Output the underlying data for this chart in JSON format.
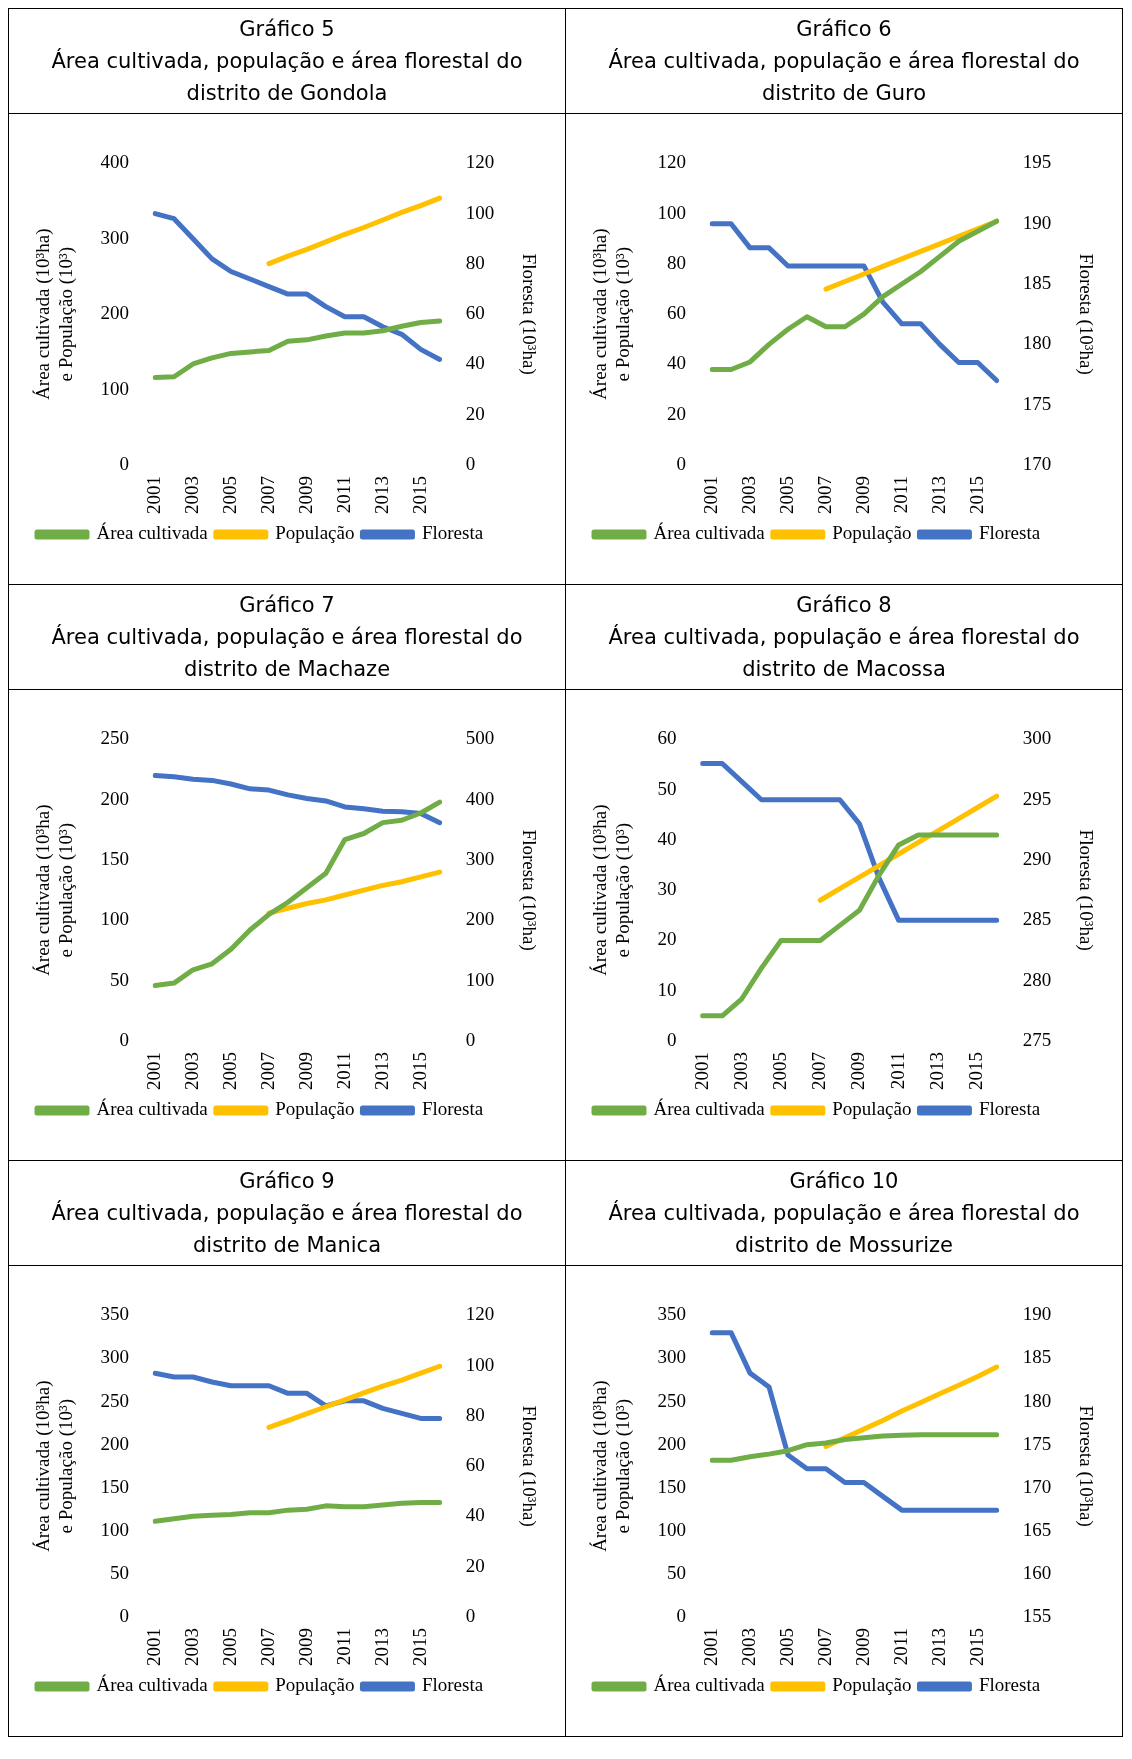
{
  "chart_data": [
    {
      "type": "line",
      "title": "Gráfico 5",
      "subtitle": "Área cultivada, população e área florestal do distrito de Gondola",
      "ylabel": "Área cultivada (10³ha) e População (10³)",
      "y2label": "Floresta (10³ha)",
      "categories": [
        "2001",
        null,
        "2003",
        null,
        "2005",
        null,
        "2007",
        null,
        "2009",
        null,
        "2011",
        null,
        "2013",
        null,
        "2015",
        null
      ],
      "ylim": [
        0,
        400
      ],
      "yticks": [
        0,
        100,
        200,
        300,
        400
      ],
      "y2lim": [
        0,
        120
      ],
      "y2ticks": [
        0,
        20,
        40,
        60,
        80,
        100,
        120
      ],
      "legend": "bottom",
      "marker": "none",
      "series": [
        {
          "name": "Área cultivada",
          "color": "#70ad47",
          "values": [
            116,
            117,
            134,
            142,
            148,
            150,
            152,
            164,
            166,
            171,
            175,
            175,
            178,
            184,
            189,
            191
          ]
        },
        {
          "name": "População",
          "color": "#ffc000",
          "values": [
            null,
            null,
            null,
            null,
            null,
            null,
            267,
            277,
            286,
            296,
            306,
            315,
            325,
            335,
            344,
            354
          ]
        },
        {
          "name": "Floresta",
          "color": "#4472c4",
          "axis": "y2",
          "values": [
            100,
            98,
            90,
            82,
            77,
            74,
            71,
            68,
            68,
            63,
            59,
            59,
            55,
            52,
            46,
            42
          ]
        }
      ]
    },
    {
      "type": "line",
      "title": "Gráfico 6",
      "subtitle": "Área cultivada, população e área florestal do distrito de Guro",
      "ylabel": "Área cultivada (10³ha) e População (10³)",
      "y2label": "Floresta (10³ha)",
      "categories": [
        "2001",
        null,
        "2003",
        null,
        "2005",
        null,
        "2007",
        null,
        "2009",
        null,
        "2011",
        null,
        "2013",
        null,
        "2015",
        null
      ],
      "ylim": [
        0,
        120
      ],
      "yticks": [
        0,
        20,
        40,
        60,
        80,
        100,
        120
      ],
      "y2lim": [
        170,
        195
      ],
      "y2ticks": [
        170,
        175,
        180,
        185,
        190,
        195
      ],
      "legend": "bottom",
      "marker": "none",
      "series": [
        {
          "name": "Área cultivada",
          "color": "#70ad47",
          "values": [
            38,
            38,
            41,
            48,
            54,
            59,
            55,
            55,
            60,
            67,
            72,
            77,
            83,
            89,
            93,
            97
          ]
        },
        {
          "name": "População",
          "color": "#ffc000",
          "values": [
            null,
            null,
            null,
            null,
            null,
            null,
            70,
            73,
            76,
            79,
            82,
            85,
            88,
            91,
            94,
            97
          ]
        },
        {
          "name": "Floresta",
          "color": "#4472c4",
          "axis": "y2",
          "values": [
            190,
            190,
            188,
            188,
            186.5,
            186.5,
            186.5,
            186.5,
            186.5,
            183.5,
            181.7,
            181.7,
            180,
            178.5,
            178.5,
            177
          ]
        }
      ]
    },
    {
      "type": "line",
      "title": "Gráfico 7",
      "subtitle": "Área cultivada, população e área florestal do distrito de Machaze",
      "ylabel": "Área cultivada (10³ha) e População (10³)",
      "y2label": "Floresta (10³ha)",
      "categories": [
        "2001",
        null,
        "2003",
        null,
        "2005",
        null,
        "2007",
        null,
        "2009",
        null,
        "2011",
        null,
        "2013",
        null,
        "2015",
        null
      ],
      "ylim": [
        0,
        250
      ],
      "yticks": [
        0,
        50,
        100,
        150,
        200,
        250
      ],
      "y2lim": [
        0,
        500
      ],
      "y2ticks": [
        0,
        100,
        200,
        300,
        400,
        500
      ],
      "legend": "bottom",
      "marker": "none",
      "series": [
        {
          "name": "Área cultivada",
          "color": "#70ad47",
          "values": [
            46,
            48,
            59,
            64,
            76,
            92,
            105,
            115,
            127,
            139,
            167,
            172,
            181,
            183,
            189,
            198
          ]
        },
        {
          "name": "População",
          "color": "#ffc000",
          "values": [
            null,
            null,
            null,
            null,
            null,
            null,
            106,
            110,
            114,
            117,
            121,
            125,
            129,
            132,
            136,
            140
          ]
        },
        {
          "name": "Floresta",
          "color": "#4472c4",
          "axis": "y2",
          "values": [
            440,
            438,
            434,
            432,
            426,
            418,
            416,
            408,
            402,
            398,
            388,
            385,
            381,
            380,
            377,
            362
          ]
        }
      ]
    },
    {
      "type": "line",
      "title": "Gráfico 8",
      "subtitle": "Área cultivada, população e área florestal do distrito de Macossa",
      "ylabel": "Área cultivada (10³ha) e População (10³)",
      "y2label": "Floresta (10³ha)",
      "categories": [
        "2001",
        null,
        "2003",
        null,
        "2005",
        null,
        "2007",
        null,
        "2009",
        null,
        "2011",
        null,
        "2013",
        null,
        "2015",
        null
      ],
      "ylim": [
        0,
        60
      ],
      "yticks": [
        0,
        10,
        20,
        30,
        40,
        50,
        60
      ],
      "y2lim": [
        275,
        300
      ],
      "y2ticks": [
        275,
        280,
        285,
        290,
        295,
        300
      ],
      "legend": "bottom",
      "marker": "none",
      "series": [
        {
          "name": "Área cultivada",
          "color": "#70ad47",
          "values": [
            5,
            5,
            8.4,
            14.5,
            20,
            20,
            20,
            23,
            26,
            33,
            39,
            41,
            41,
            41,
            41,
            41
          ]
        },
        {
          "name": "População",
          "color": "#ffc000",
          "values": [
            null,
            null,
            null,
            null,
            null,
            null,
            28,
            30.3,
            32.6,
            34.9,
            37.2,
            39.5,
            41.8,
            44.1,
            46.4,
            48.7
          ]
        },
        {
          "name": "Floresta",
          "color": "#4472c4",
          "axis": "y2",
          "values": [
            298,
            298,
            296.5,
            295,
            295,
            295,
            295,
            295,
            293,
            288.5,
            285,
            285,
            285,
            285,
            285,
            285
          ]
        }
      ]
    },
    {
      "type": "line",
      "title": "Gráfico 9",
      "subtitle": "Área cultivada, população e área florestal do distrito de Manica",
      "ylabel": "Área cultivada (10³ha) e População (10³)",
      "y2label": "Floresta (10³ha)",
      "categories": [
        "2001",
        null,
        "2003",
        null,
        "2005",
        null,
        "2007",
        null,
        "2009",
        null,
        "2011",
        null,
        "2013",
        null,
        "2015",
        null
      ],
      "ylim": [
        0,
        350
      ],
      "yticks": [
        0,
        50,
        100,
        150,
        200,
        250,
        300,
        350
      ],
      "y2lim": [
        0,
        120
      ],
      "y2ticks": [
        0,
        20,
        40,
        60,
        80,
        100,
        120
      ],
      "legend": "bottom",
      "marker": "none",
      "series": [
        {
          "name": "Área cultivada",
          "color": "#70ad47",
          "values": [
            111,
            114,
            117,
            118,
            119,
            121,
            121,
            124,
            125,
            129,
            128,
            128,
            130,
            132,
            133,
            133
          ]
        },
        {
          "name": "População",
          "color": "#ffc000",
          "values": [
            null,
            null,
            null,
            null,
            null,
            null,
            220,
            228,
            236,
            244,
            252,
            260,
            268,
            275,
            283,
            291
          ]
        },
        {
          "name": "Floresta",
          "color": "#4472c4",
          "axis": "y2",
          "values": [
            97,
            95.5,
            95.5,
            93.5,
            92,
            92,
            92,
            89,
            89,
            84,
            86,
            86,
            83,
            81,
            79,
            79
          ]
        }
      ]
    },
    {
      "type": "line",
      "title": "Gráfico 10",
      "subtitle": "Área cultivada, população e área florestal do distrito de Mossurize",
      "ylabel": "Área cultivada (10³ha) e População (10³)",
      "y2label": "Floresta (10³ha)",
      "categories": [
        "2001",
        null,
        "2003",
        null,
        "2005",
        null,
        "2007",
        null,
        "2009",
        null,
        "2011",
        null,
        "2013",
        null,
        "2015",
        null
      ],
      "ylim": [
        0,
        350
      ],
      "yticks": [
        0,
        50,
        100,
        150,
        200,
        250,
        300,
        350
      ],
      "y2lim": [
        155,
        190
      ],
      "y2ticks": [
        155,
        160,
        165,
        170,
        175,
        180,
        185,
        190
      ],
      "legend": "bottom",
      "marker": "none",
      "series": [
        {
          "name": "Área cultivada",
          "color": "#70ad47",
          "values": [
            182,
            182,
            186,
            189,
            193,
            200,
            202,
            206,
            208,
            210,
            211,
            211.5,
            211.5,
            211.5,
            211.5,
            211.5
          ]
        },
        {
          "name": "População",
          "color": "#ffc000",
          "values": [
            null,
            null,
            null,
            null,
            null,
            null,
            198,
            208,
            218,
            228,
            239,
            249,
            259,
            269,
            279,
            290
          ]
        },
        {
          "name": "Floresta",
          "color": "#4472c4",
          "axis": "y2",
          "values": [
            188,
            188,
            183.3,
            181.7,
            173.8,
            172.2,
            172.2,
            170.6,
            170.6,
            169,
            167.4,
            167.4,
            167.4,
            167.4,
            167.4,
            167.4
          ]
        }
      ]
    }
  ]
}
